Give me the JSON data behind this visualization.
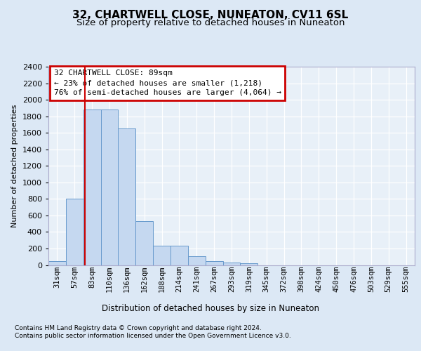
{
  "title": "32, CHARTWELL CLOSE, NUNEATON, CV11 6SL",
  "subtitle": "Size of property relative to detached houses in Nuneaton",
  "xlabel": "Distribution of detached houses by size in Nuneaton",
  "ylabel": "Number of detached properties",
  "bar_labels": [
    "31sqm",
    "57sqm",
    "83sqm",
    "110sqm",
    "136sqm",
    "162sqm",
    "188sqm",
    "214sqm",
    "241sqm",
    "267sqm",
    "293sqm",
    "319sqm",
    "345sqm",
    "372sqm",
    "398sqm",
    "424sqm",
    "450sqm",
    "476sqm",
    "503sqm",
    "529sqm",
    "555sqm"
  ],
  "bar_values": [
    50,
    800,
    1880,
    1880,
    1650,
    530,
    235,
    235,
    105,
    50,
    30,
    20,
    0,
    0,
    0,
    0,
    0,
    0,
    0,
    0,
    0
  ],
  "bar_color": "#c5d8f0",
  "bar_edge_color": "#6699cc",
  "red_line_x": 1.575,
  "annotation_line1": "32 CHARTWELL CLOSE: 89sqm",
  "annotation_line2": "← 23% of detached houses are smaller (1,218)",
  "annotation_line3": "76% of semi-detached houses are larger (4,064) →",
  "annotation_box_facecolor": "#ffffff",
  "annotation_box_edgecolor": "#cc0000",
  "ylim_max": 2400,
  "ytick_step": 200,
  "bg_color": "#dce8f5",
  "plot_bg_color": "#e8f0f8",
  "title_fontsize": 11,
  "subtitle_fontsize": 9.5,
  "footer_line1": "Contains HM Land Registry data © Crown copyright and database right 2024.",
  "footer_line2": "Contains public sector information licensed under the Open Government Licence v3.0."
}
